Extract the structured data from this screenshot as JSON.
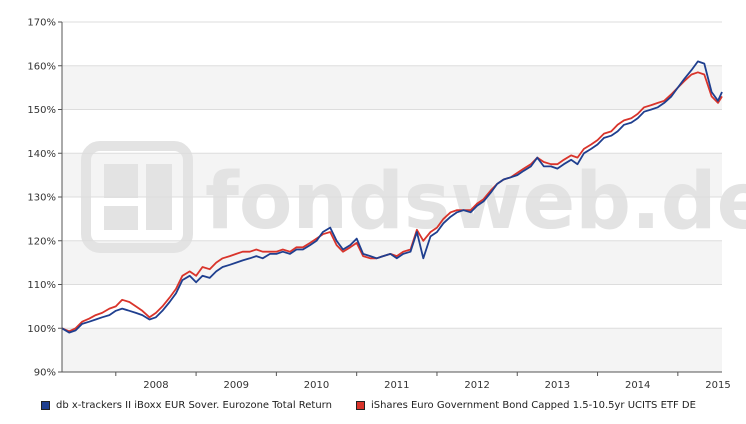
{
  "watermark": "fondsweb.de",
  "chart_data": {
    "type": "line",
    "ylim": [
      90,
      170
    ],
    "y_ticks": [
      90,
      100,
      110,
      120,
      130,
      140,
      150,
      160,
      170
    ],
    "y_unit": "%",
    "x_range": [
      2007.33,
      2015.55
    ],
    "x_ticks": [
      "2008",
      "2009",
      "2010",
      "2011",
      "2012",
      "2013",
      "2014",
      "2015"
    ],
    "grid": true,
    "legend": "bottom",
    "series": [
      {
        "name": "db x-trackers II iBoxx EUR Sover. Eurozone Total Return",
        "color": "#1f3f8f",
        "x": [
          2007.33,
          2007.42,
          2007.5,
          2007.58,
          2007.67,
          2007.75,
          2007.83,
          2007.92,
          2008.0,
          2008.08,
          2008.17,
          2008.25,
          2008.33,
          2008.42,
          2008.5,
          2008.58,
          2008.67,
          2008.75,
          2008.83,
          2008.92,
          2009.0,
          2009.08,
          2009.17,
          2009.25,
          2009.33,
          2009.42,
          2009.5,
          2009.58,
          2009.67,
          2009.75,
          2009.83,
          2009.92,
          2010.0,
          2010.08,
          2010.17,
          2010.25,
          2010.33,
          2010.42,
          2010.5,
          2010.58,
          2010.67,
          2010.75,
          2010.83,
          2010.92,
          2011.0,
          2011.08,
          2011.17,
          2011.25,
          2011.33,
          2011.42,
          2011.5,
          2011.58,
          2011.67,
          2011.75,
          2011.83,
          2011.92,
          2012.0,
          2012.08,
          2012.17,
          2012.25,
          2012.33,
          2012.42,
          2012.5,
          2012.58,
          2012.67,
          2012.75,
          2012.83,
          2012.92,
          2013.0,
          2013.08,
          2013.17,
          2013.25,
          2013.33,
          2013.42,
          2013.5,
          2013.58,
          2013.67,
          2013.75,
          2013.83,
          2013.92,
          2014.0,
          2014.08,
          2014.17,
          2014.25,
          2014.33,
          2014.42,
          2014.5,
          2014.58,
          2014.67,
          2014.75,
          2014.83,
          2014.92,
          2015.0,
          2015.08,
          2015.17,
          2015.25,
          2015.33,
          2015.42,
          2015.5,
          2015.55
        ],
        "y": [
          100,
          99,
          99.5,
          101,
          101.5,
          102,
          102.5,
          103,
          104,
          104.5,
          104,
          103.5,
          103,
          102,
          102.5,
          104,
          106,
          108,
          111,
          112,
          110.5,
          112,
          111.5,
          113,
          114,
          114.5,
          115,
          115.5,
          116,
          116.5,
          116,
          117,
          117,
          117.5,
          117,
          118,
          118,
          119,
          120,
          122,
          123,
          120,
          118,
          119,
          120.5,
          117,
          116.5,
          116,
          116.5,
          117,
          116,
          117,
          117.5,
          122,
          116,
          121,
          122,
          124,
          125.5,
          126.5,
          127,
          126.5,
          128,
          129,
          131,
          133,
          134,
          134.5,
          135,
          136,
          137,
          139,
          137,
          137,
          136.5,
          137.5,
          138.5,
          137.5,
          140,
          141,
          142,
          143.5,
          144,
          145,
          146.5,
          147,
          148,
          149.5,
          150,
          150.5,
          151.5,
          153,
          155,
          157,
          159,
          161,
          160.5,
          154,
          152,
          154
        ]
      },
      {
        "name": "iShares Euro Government Bond Capped 1.5-10.5yr UCITS ETF DE",
        "color": "#d9342b",
        "x": [
          2007.33,
          2007.42,
          2007.5,
          2007.58,
          2007.67,
          2007.75,
          2007.83,
          2007.92,
          2008.0,
          2008.08,
          2008.17,
          2008.25,
          2008.33,
          2008.42,
          2008.5,
          2008.58,
          2008.67,
          2008.75,
          2008.83,
          2008.92,
          2009.0,
          2009.08,
          2009.17,
          2009.25,
          2009.33,
          2009.42,
          2009.5,
          2009.58,
          2009.67,
          2009.75,
          2009.83,
          2009.92,
          2010.0,
          2010.08,
          2010.17,
          2010.25,
          2010.33,
          2010.42,
          2010.5,
          2010.58,
          2010.67,
          2010.75,
          2010.83,
          2010.92,
          2011.0,
          2011.08,
          2011.17,
          2011.25,
          2011.33,
          2011.42,
          2011.5,
          2011.58,
          2011.67,
          2011.75,
          2011.83,
          2011.92,
          2012.0,
          2012.08,
          2012.17,
          2012.25,
          2012.33,
          2012.42,
          2012.5,
          2012.58,
          2012.67,
          2012.75,
          2012.83,
          2012.92,
          2013.0,
          2013.08,
          2013.17,
          2013.25,
          2013.33,
          2013.42,
          2013.5,
          2013.58,
          2013.67,
          2013.75,
          2013.83,
          2013.92,
          2014.0,
          2014.08,
          2014.17,
          2014.25,
          2014.33,
          2014.42,
          2014.5,
          2014.58,
          2014.67,
          2014.75,
          2014.83,
          2014.92,
          2015.0,
          2015.08,
          2015.17,
          2015.25,
          2015.33,
          2015.42,
          2015.5,
          2015.55
        ],
        "y": [
          100,
          99.3,
          100,
          101.5,
          102.2,
          103,
          103.5,
          104.5,
          105,
          106.5,
          106,
          105,
          104,
          102.5,
          103.5,
          105,
          107,
          109,
          112,
          113,
          112,
          114,
          113.5,
          115,
          116,
          116.5,
          117,
          117.5,
          117.5,
          118,
          117.5,
          117.5,
          117.5,
          118,
          117.5,
          118.5,
          118.5,
          119.5,
          120.5,
          121.5,
          122,
          119,
          117.5,
          118.5,
          119.5,
          116.5,
          116,
          116,
          116.5,
          117,
          116.5,
          117.5,
          118,
          122.5,
          120,
          122,
          123,
          125,
          126.5,
          127,
          127,
          127,
          128.5,
          129.5,
          131.5,
          133,
          134,
          134.5,
          135.5,
          136.5,
          137.5,
          139,
          138,
          137.5,
          137.5,
          138.5,
          139.5,
          139,
          141,
          142,
          143,
          144.5,
          145,
          146.5,
          147.5,
          148,
          149,
          150.5,
          151,
          151.5,
          152,
          153.5,
          155,
          156.5,
          158,
          158.5,
          158,
          153,
          151.5,
          153
        ]
      }
    ]
  }
}
